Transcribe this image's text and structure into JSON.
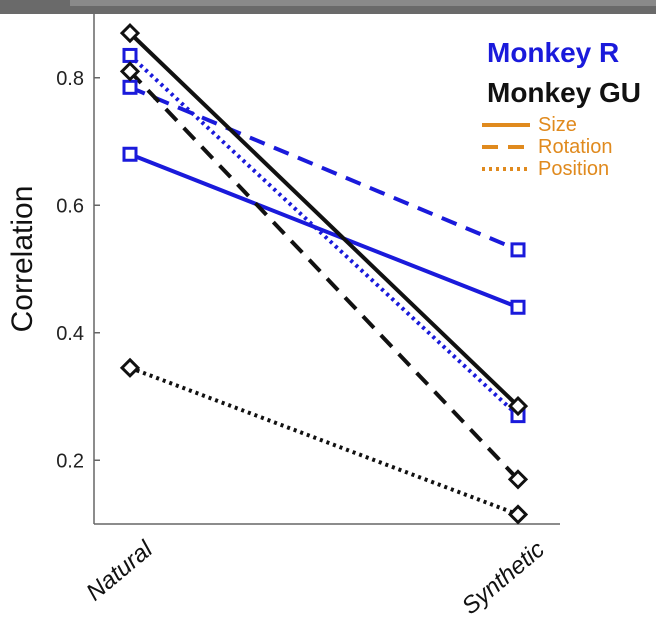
{
  "chart_data": {
    "type": "line",
    "categories": [
      "Natural",
      "Synthetic"
    ],
    "ylabel": "Correlation",
    "xlabel": "",
    "ylim": [
      0.1,
      0.9
    ],
    "yticks": [
      0.2,
      0.4,
      0.6,
      0.8
    ],
    "ytick_labels": [
      "0.2",
      "0.4",
      "0.6",
      "0.8"
    ],
    "grid": false,
    "legend": {
      "placement": "top-right",
      "groups": [
        {
          "label": "Monkey R",
          "color": "#1a1adb"
        },
        {
          "label": "Monkey GU",
          "color": "#111111"
        }
      ],
      "styles": [
        {
          "label": "Size",
          "dash": "solid"
        },
        {
          "label": "Rotation",
          "dash": "dashed"
        },
        {
          "label": "Position",
          "dash": "dotted"
        }
      ],
      "style_color": "#e08a1e"
    },
    "series": [
      {
        "group": "Monkey R",
        "style": "Size",
        "values": [
          0.68,
          0.44
        ]
      },
      {
        "group": "Monkey R",
        "style": "Rotation",
        "values": [
          0.785,
          0.53
        ]
      },
      {
        "group": "Monkey R",
        "style": "Position",
        "values": [
          0.835,
          0.27
        ]
      },
      {
        "group": "Monkey GU",
        "style": "Size",
        "values": [
          0.87,
          0.285
        ]
      },
      {
        "group": "Monkey GU",
        "style": "Rotation",
        "values": [
          0.81,
          0.17
        ]
      },
      {
        "group": "Monkey GU",
        "style": "Position",
        "values": [
          0.345,
          0.115
        ]
      }
    ],
    "colors": {
      "Monkey R": "#1a1adb",
      "Monkey GU": "#111111"
    },
    "markers": {
      "Monkey R": "square",
      "Monkey GU": "diamond"
    }
  }
}
